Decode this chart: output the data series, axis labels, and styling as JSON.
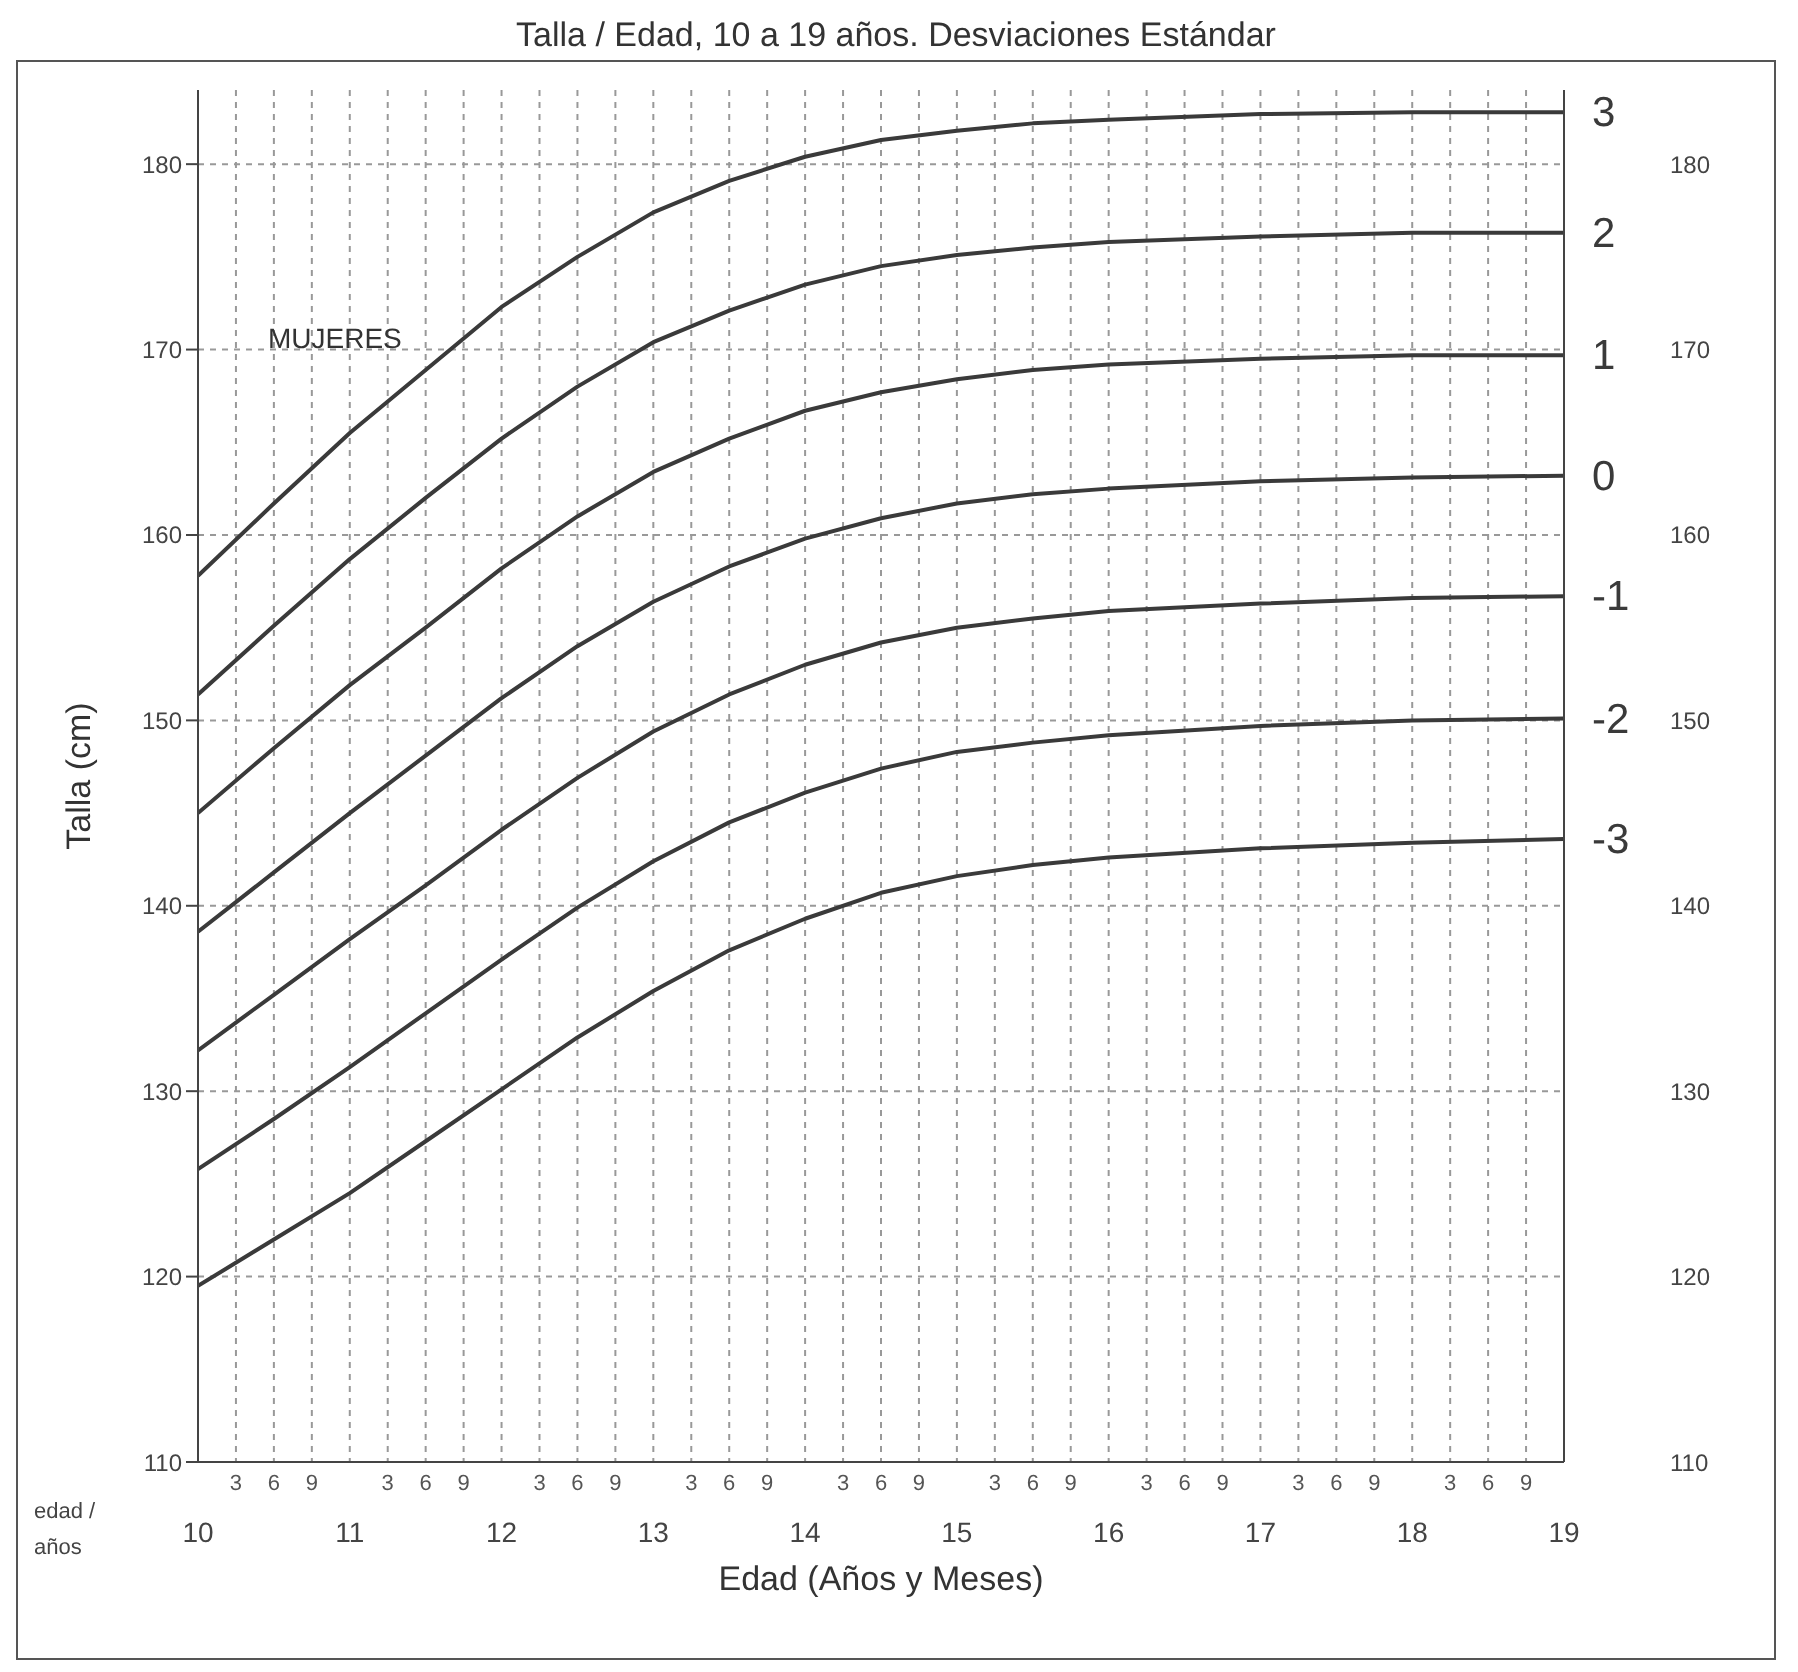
{
  "chart_data": {
    "type": "line",
    "title": "Talla / Edad, 10 a 19 años. Desviaciones Estándar",
    "xlabel": "Edad (Años y Meses)",
    "ylabel": "Talla (cm)",
    "annotations": [
      "MUJERES",
      "edad / años",
      "3",
      "6",
      "9",
      "3",
      "6",
      "9",
      "3",
      "6",
      "9",
      "3",
      "6",
      "9",
      "3",
      "6",
      "9",
      "3",
      "6",
      "9",
      "3",
      "6",
      "9",
      "3",
      "6",
      "9",
      "3",
      "6",
      "9"
    ],
    "x": [
      10,
      10.5,
      11,
      11.5,
      12,
      12.5,
      13,
      13.5,
      14,
      14.5,
      15,
      15.5,
      16,
      17,
      18,
      19
    ],
    "series": [
      {
        "name": "3",
        "color": "#3a3a3a",
        "values": [
          157.8,
          161.7,
          165.5,
          168.9,
          172.3,
          175.0,
          177.4,
          179.1,
          180.4,
          181.3,
          181.8,
          182.2,
          182.4,
          182.7,
          182.8,
          182.8
        ]
      },
      {
        "name": "2",
        "color": "#3a3a3a",
        "values": [
          151.4,
          155.1,
          158.7,
          162.0,
          165.2,
          168.0,
          170.4,
          172.1,
          173.5,
          174.5,
          175.1,
          175.5,
          175.8,
          176.1,
          176.3,
          176.3
        ]
      },
      {
        "name": "1",
        "color": "#3a3a3a",
        "values": [
          145.0,
          148.5,
          151.9,
          155.0,
          158.2,
          161.0,
          163.4,
          165.2,
          166.7,
          167.7,
          168.4,
          168.9,
          169.2,
          169.5,
          169.7,
          169.7
        ]
      },
      {
        "name": "0",
        "color": "#3a3a3a",
        "values": [
          138.6,
          141.8,
          145.0,
          148.1,
          151.2,
          154.0,
          156.4,
          158.3,
          159.8,
          160.9,
          161.7,
          162.2,
          162.5,
          162.9,
          163.1,
          163.2
        ]
      },
      {
        "name": "-1",
        "color": "#3a3a3a",
        "values": [
          132.2,
          135.2,
          138.2,
          141.1,
          144.1,
          146.9,
          149.4,
          151.4,
          153.0,
          154.2,
          155.0,
          155.5,
          155.9,
          156.3,
          156.6,
          156.7
        ]
      },
      {
        "name": "-2",
        "color": "#3a3a3a",
        "values": [
          125.8,
          128.5,
          131.3,
          134.2,
          137.1,
          139.9,
          142.4,
          144.5,
          146.1,
          147.4,
          148.3,
          148.8,
          149.2,
          149.7,
          150.0,
          150.1
        ]
      },
      {
        "name": "-3",
        "color": "#3a3a3a",
        "values": [
          119.5,
          122.0,
          124.5,
          127.3,
          130.1,
          132.9,
          135.4,
          137.6,
          139.3,
          140.7,
          141.6,
          142.2,
          142.6,
          143.1,
          143.4,
          143.6
        ]
      }
    ],
    "xlim": [
      10,
      19
    ],
    "xticks": [
      10,
      {
        "value": 10.25,
        "label": null
      },
      {
        "value": 10.5,
        "label": null
      },
      {
        "value": 10.75,
        "label": null
      },
      11,
      {
        "value": 11.25,
        "label": null
      },
      {
        "value": 11.5,
        "label": null
      },
      {
        "value": 11.75,
        "label": null
      },
      12,
      {
        "value": 12.25,
        "label": null
      },
      {
        "value": 12.5,
        "label": null
      },
      {
        "value": 12.75,
        "label": null
      },
      13,
      {
        "value": 13.25,
        "label": null
      },
      {
        "value": 13.5,
        "label": null
      },
      {
        "value": 13.75,
        "label": null
      },
      14,
      {
        "value": 14.25,
        "label": null
      },
      {
        "value": 14.5,
        "label": null
      },
      {
        "value": 14.75,
        "label": null
      },
      15,
      {
        "value": 15.25,
        "label": null
      },
      {
        "value": 15.5,
        "label": null
      },
      {
        "value": 15.75,
        "label": null
      },
      16,
      {
        "value": 16.25,
        "label": null
      },
      {
        "value": 16.5,
        "label": null
      },
      {
        "value": 16.75,
        "label": null
      },
      17,
      {
        "value": 17.25,
        "label": null
      },
      {
        "value": 17.5,
        "label": null
      },
      {
        "value": 17.75,
        "label": null
      },
      18,
      {
        "value": 18.25,
        "label": null
      },
      {
        "value": 18.5,
        "label": null
      },
      {
        "value": 18.75,
        "label": null
      },
      19
    ],
    "ylim": [
      110,
      184
    ],
    "yticks": [
      110,
      120,
      130,
      140,
      150,
      160,
      170,
      180
    ],
    "y2lim": [
      110,
      184
    ],
    "y2ticks": [
      110,
      120,
      130,
      140,
      150,
      160,
      170,
      180
    ],
    "grid": true,
    "legend": false,
    "marker": "none",
    "line_style": "solid"
  }
}
